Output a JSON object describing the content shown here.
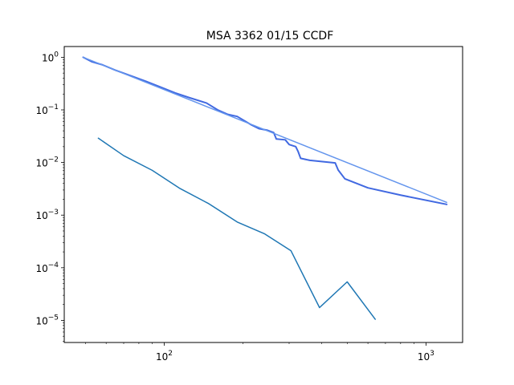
{
  "chart_data": {
    "type": "line",
    "title": "MSA 3362 01/15 CCDF",
    "xlabel": "",
    "ylabel": "",
    "xscale": "log",
    "yscale": "log",
    "xlim": [
      41.5,
      1380
    ],
    "ylim": [
      3.8e-06,
      1.6
    ],
    "grid": false,
    "legend": "none",
    "x_ticks": [
      {
        "value": 100,
        "base": "10",
        "exp": "2"
      },
      {
        "value": 1000,
        "base": "10",
        "exp": "3"
      }
    ],
    "y_ticks": [
      {
        "value": 1,
        "base": "10",
        "exp": "0"
      },
      {
        "value": 0.1,
        "base": "10",
        "exp": "−1"
      },
      {
        "value": 0.01,
        "base": "10",
        "exp": "−2"
      },
      {
        "value": 0.001,
        "base": "10",
        "exp": "−3"
      },
      {
        "value": 0.0001,
        "base": "10",
        "exp": "−4"
      },
      {
        "value": 1e-05,
        "base": "10",
        "exp": "−5"
      }
    ],
    "series": [
      {
        "color": "#1f77b4",
        "width": 1.5,
        "points": [
          [
            56,
            0.029
          ],
          [
            70,
            0.0135
          ],
          [
            90,
            0.0071
          ],
          [
            115,
            0.0032
          ],
          [
            148,
            0.00165
          ],
          [
            190,
            0.00074
          ],
          [
            242,
            0.00044
          ],
          [
            305,
            0.00021
          ],
          [
            392,
            1.75e-05
          ],
          [
            500,
            5.4e-05
          ],
          [
            640,
            1.05e-05
          ]
        ]
      },
      {
        "color": "#4169e1",
        "width": 2,
        "points": [
          [
            49,
            1.0
          ],
          [
            53,
            0.82
          ],
          [
            58,
            0.72
          ],
          [
            65,
            0.57
          ],
          [
            75,
            0.44
          ],
          [
            85,
            0.35
          ],
          [
            97,
            0.27
          ],
          [
            110,
            0.21
          ],
          [
            125,
            0.17
          ],
          [
            145,
            0.135
          ],
          [
            160,
            0.1
          ],
          [
            175,
            0.082
          ],
          [
            190,
            0.075
          ],
          [
            205,
            0.06
          ],
          [
            215,
            0.052
          ],
          [
            230,
            0.044
          ],
          [
            248,
            0.041
          ],
          [
            262,
            0.037
          ],
          [
            268,
            0.028
          ],
          [
            290,
            0.027
          ],
          [
            300,
            0.022
          ],
          [
            318,
            0.02
          ],
          [
            325,
            0.016
          ],
          [
            332,
            0.012
          ],
          [
            360,
            0.011
          ],
          [
            450,
            0.0098
          ],
          [
            462,
            0.0072
          ],
          [
            490,
            0.0049
          ],
          [
            600,
            0.0033
          ],
          [
            800,
            0.0024
          ],
          [
            1200,
            0.0016
          ]
        ]
      },
      {
        "color": "#6495ed",
        "width": 1.5,
        "points": [
          [
            49,
            1.0
          ],
          [
            1200,
            0.00175
          ]
        ]
      }
    ]
  }
}
